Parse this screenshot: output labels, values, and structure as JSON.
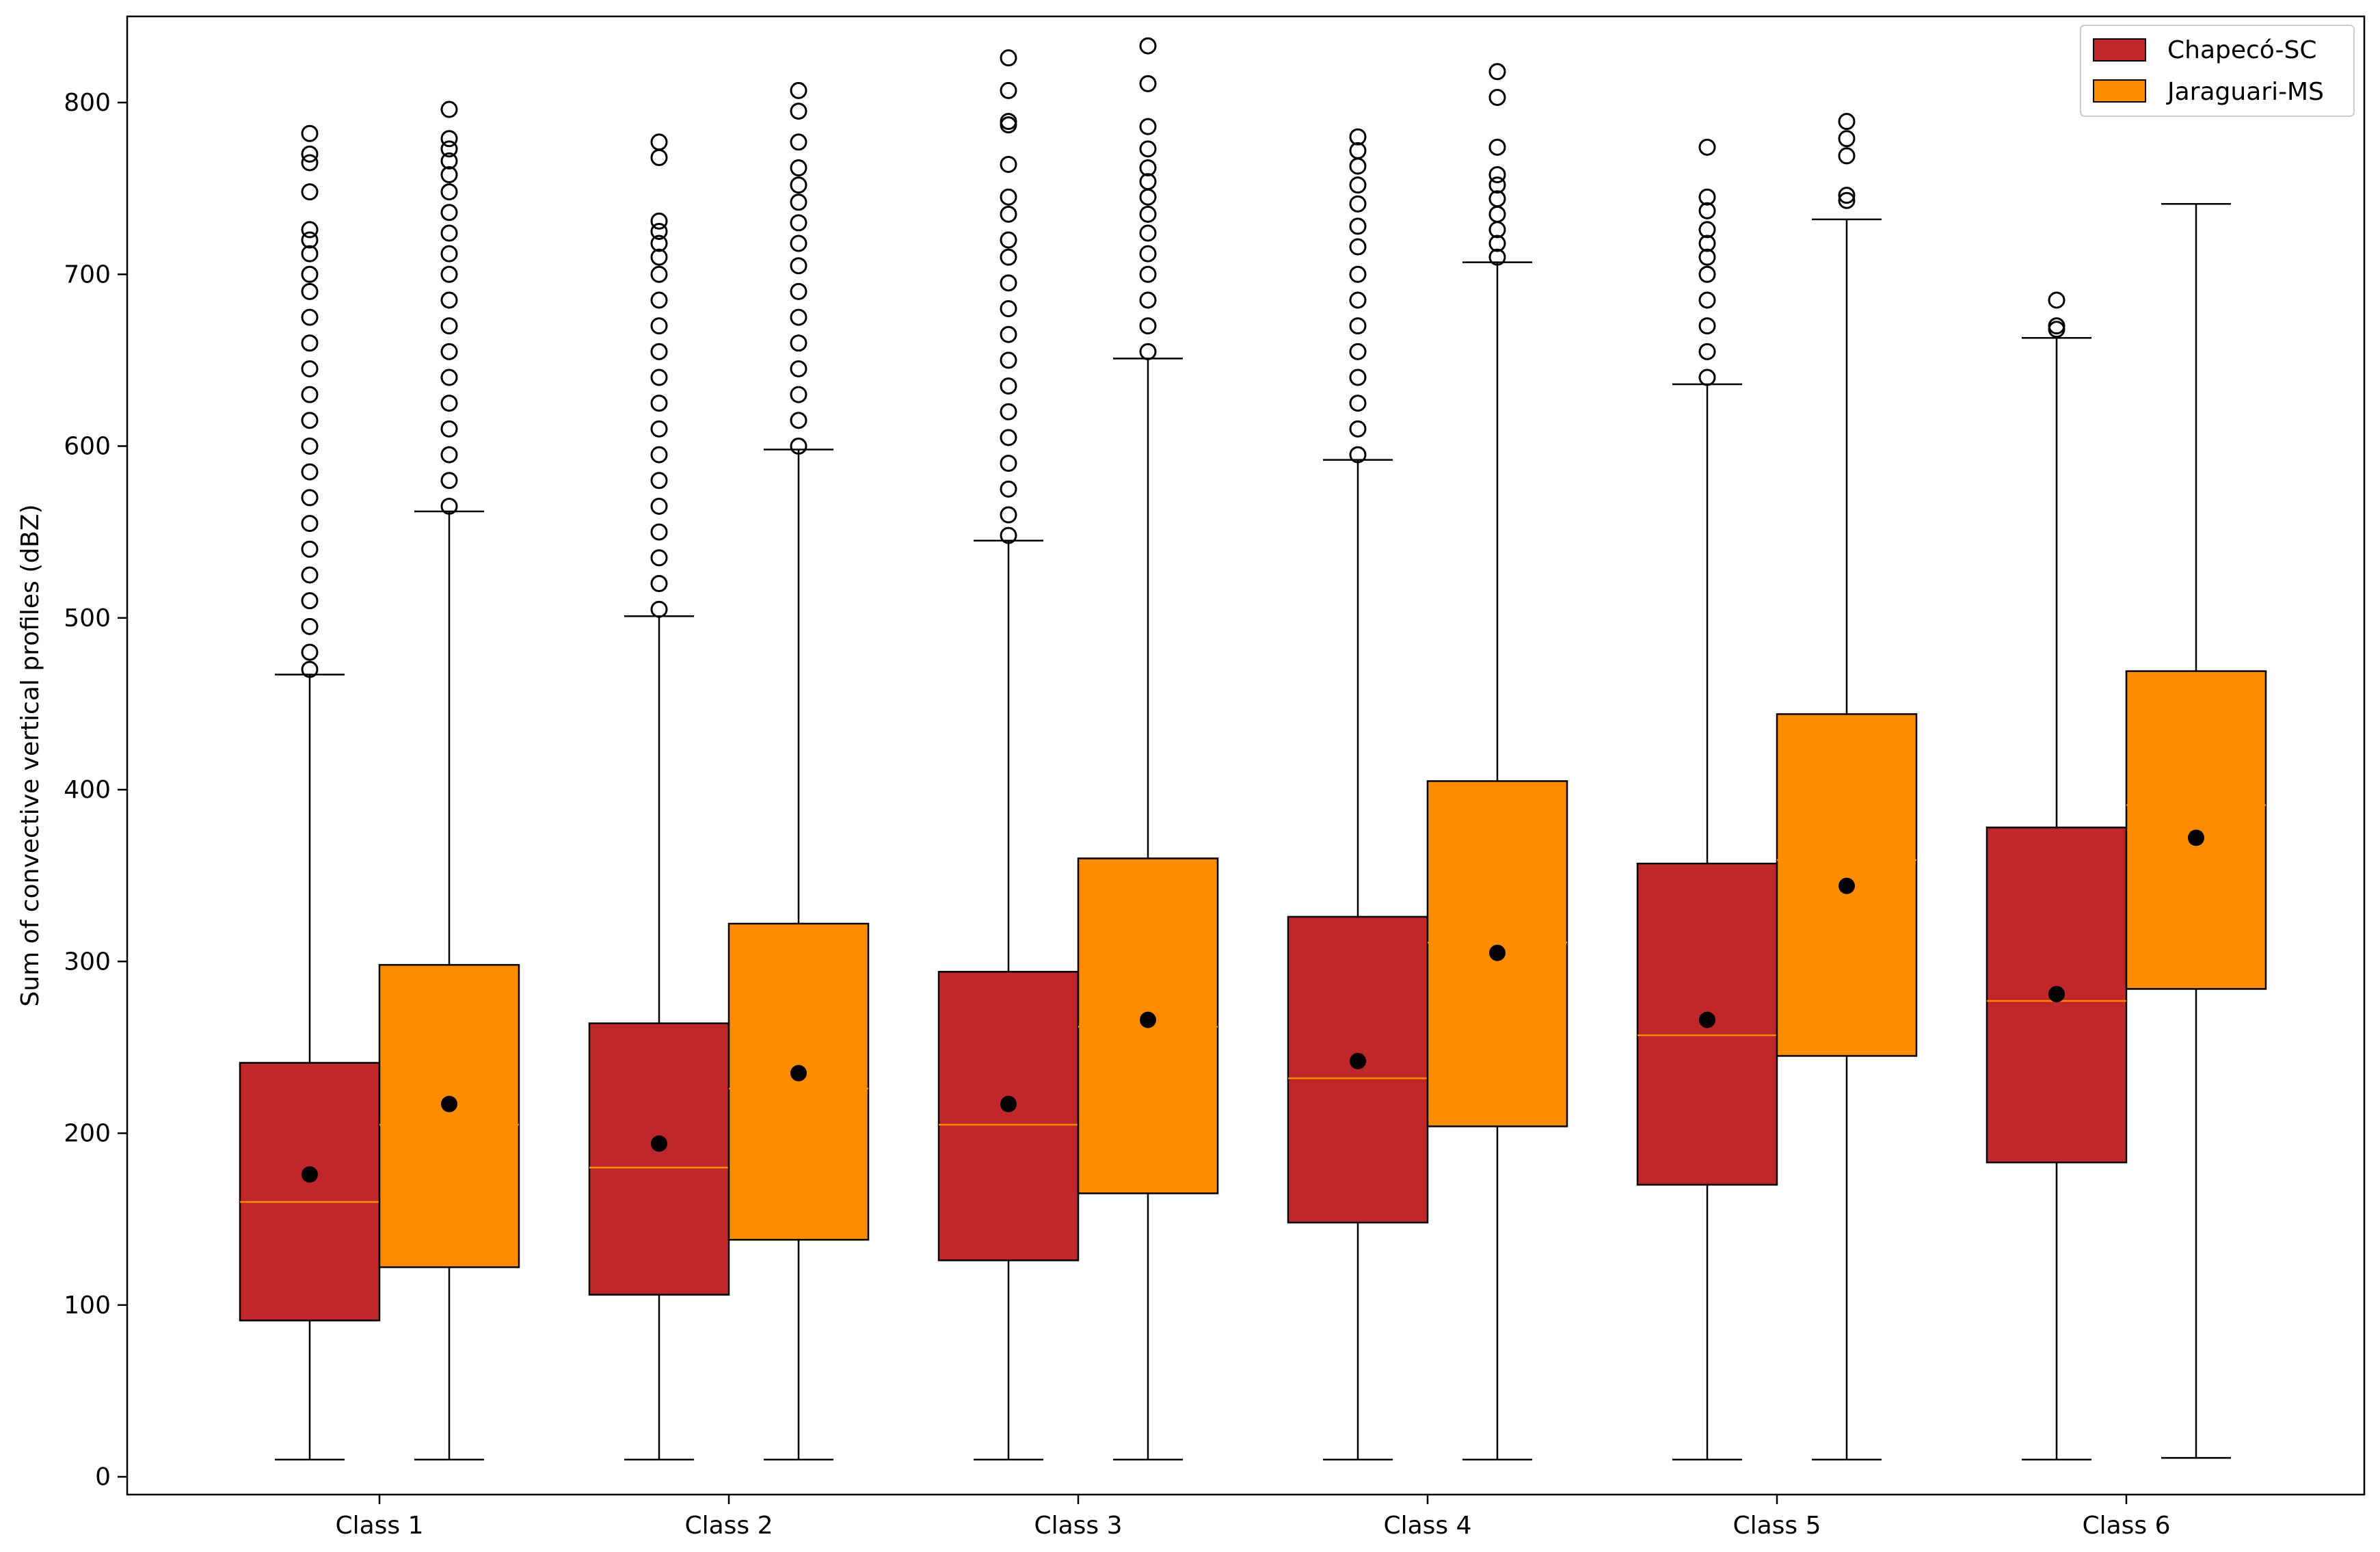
{
  "chart_data": {
    "type": "boxplot",
    "title": "",
    "xlabel": "",
    "ylabel": "Sum of convective vertical profiles (dBZ)",
    "ylim": [
      -13,
      853
    ],
    "yticks": [
      0,
      100,
      200,
      300,
      400,
      500,
      600,
      700,
      800
    ],
    "categories": [
      "Class 1",
      "Class 2",
      "Class 3",
      "Class 4",
      "Class 5",
      "Class 6"
    ],
    "grid": false,
    "legend_position": "top-right",
    "colors": {
      "Chapecó-SC": "#c0272a",
      "Jaraguari-MS": "#ff8c00",
      "median_line": "#ff8c00",
      "mean_marker": "#000000"
    },
    "series": [
      {
        "name": "Chapecó-SC",
        "boxes": [
          {
            "whisker_low": 10,
            "q1": 91,
            "median": 160,
            "mean": 176,
            "q3": 241,
            "whisker_high": 467,
            "outliers": [
              470,
              480,
              495,
              510,
              525,
              540,
              555,
              570,
              585,
              600,
              615,
              630,
              645,
              660,
              675,
              690,
              700,
              712,
              720,
              726,
              748,
              765,
              770,
              782
            ]
          },
          {
            "whisker_low": 10,
            "q1": 106,
            "median": 180,
            "mean": 194,
            "q3": 264,
            "whisker_high": 501,
            "outliers": [
              505,
              520,
              535,
              550,
              565,
              580,
              595,
              610,
              625,
              640,
              655,
              670,
              685,
              700,
              710,
              718,
              725,
              731,
              768,
              777
            ]
          },
          {
            "whisker_low": 10,
            "q1": 126,
            "median": 205,
            "mean": 217,
            "q3": 294,
            "whisker_high": 545,
            "outliers": [
              548,
              560,
              575,
              590,
              605,
              620,
              635,
              650,
              665,
              680,
              695,
              710,
              720,
              735,
              745,
              764,
              787,
              789,
              807,
              826
            ]
          },
          {
            "whisker_low": 10,
            "q1": 148,
            "median": 232,
            "mean": 242,
            "q3": 326,
            "whisker_high": 592,
            "outliers": [
              595,
              610,
              625,
              640,
              655,
              670,
              685,
              700,
              716,
              728,
              741,
              752,
              763,
              772,
              780
            ]
          },
          {
            "whisker_low": 10,
            "q1": 170,
            "median": 257,
            "mean": 266,
            "q3": 357,
            "whisker_high": 636,
            "outliers": [
              640,
              655,
              670,
              685,
              700,
              710,
              718,
              726,
              737,
              745,
              774
            ]
          },
          {
            "whisker_low": 10,
            "q1": 183,
            "median": 277,
            "mean": 281,
            "q3": 378,
            "whisker_high": 663,
            "outliers": [
              668,
              670,
              685
            ]
          }
        ]
      },
      {
        "name": "Jaraguari-MS",
        "boxes": [
          {
            "whisker_low": 10,
            "q1": 122,
            "median": 205,
            "mean": 217,
            "q3": 298,
            "whisker_high": 562,
            "outliers": [
              565,
              580,
              595,
              610,
              625,
              640,
              655,
              670,
              685,
              700,
              712,
              724,
              736,
              748,
              758,
              766,
              773,
              779,
              796
            ]
          },
          {
            "whisker_low": 10,
            "q1": 138,
            "median": 226,
            "mean": 235,
            "q3": 322,
            "whisker_high": 598,
            "outliers": [
              600,
              615,
              630,
              645,
              660,
              675,
              690,
              705,
              718,
              730,
              742,
              752,
              762,
              777,
              795,
              807
            ]
          },
          {
            "whisker_low": 10,
            "q1": 165,
            "median": 262,
            "mean": 266,
            "q3": 360,
            "whisker_high": 651,
            "outliers": [
              655,
              670,
              685,
              700,
              712,
              724,
              735,
              745,
              754,
              762,
              773,
              786,
              811,
              833
            ]
          },
          {
            "whisker_low": 10,
            "q1": 204,
            "median": 311,
            "mean": 305,
            "q3": 405,
            "whisker_high": 707,
            "outliers": [
              710,
              718,
              726,
              735,
              744,
              752,
              758,
              774,
              803,
              818
            ]
          },
          {
            "whisker_low": 10,
            "q1": 245,
            "median": 359,
            "mean": 344,
            "q3": 444,
            "whisker_high": 732,
            "outliers": [
              743,
              746,
              769,
              779,
              789
            ]
          },
          {
            "whisker_low": 11,
            "q1": 284,
            "median": 391,
            "mean": 372,
            "q3": 469,
            "whisker_high": 741,
            "outliers": []
          }
        ]
      }
    ]
  }
}
